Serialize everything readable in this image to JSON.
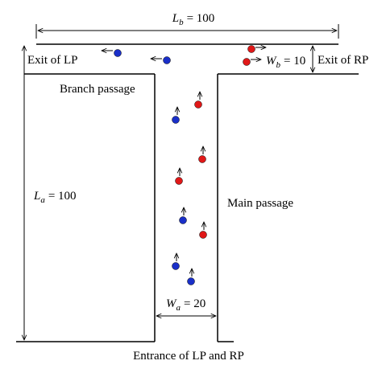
{
  "dimensions": {
    "branch_length": {
      "symbol": "L",
      "subscript": "b",
      "equals": "= 100"
    },
    "main_length": {
      "symbol": "L",
      "subscript": "a",
      "equals": "= 100"
    },
    "branch_width": {
      "symbol": "W",
      "subscript": "b",
      "equals": "= 10"
    },
    "main_width": {
      "symbol": "W",
      "subscript": "a",
      "equals": "= 20"
    }
  },
  "labels": {
    "exit_left": "Exit of LP",
    "exit_right": "Exit of RP",
    "branch": "Branch passage",
    "main": "Main passage",
    "entrance": "Entrance of LP and RP"
  }
}
